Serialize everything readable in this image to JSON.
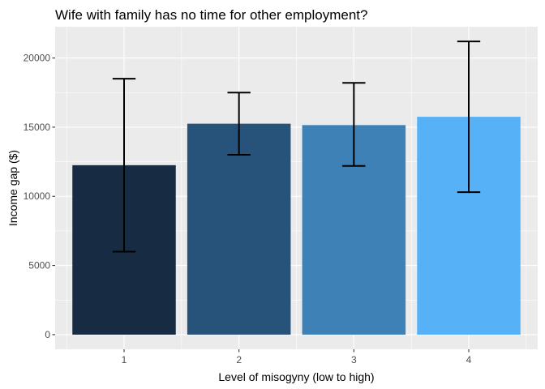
{
  "chart_data": {
    "type": "bar",
    "title": "Wife with family has no time for other employment?",
    "xlabel": "Level of misogyny (low to high)",
    "ylabel": "Income gap ($)",
    "categories": [
      "1",
      "2",
      "3",
      "4"
    ],
    "values": [
      12250,
      15250,
      15150,
      15750
    ],
    "error_bars": [
      {
        "low": 6000,
        "high": 18500
      },
      {
        "low": 13000,
        "high": 17500
      },
      {
        "low": 12200,
        "high": 18200
      },
      {
        "low": 10300,
        "high": 21200
      }
    ],
    "bar_colors": [
      "#172B43",
      "#27527A",
      "#3E81B7",
      "#56B1F7"
    ],
    "yticks": [
      0,
      5000,
      10000,
      15000,
      20000
    ],
    "ytick_labels": [
      "0",
      "5000",
      "10000",
      "15000",
      "20000"
    ],
    "ylim": [
      -1060,
      22260
    ],
    "panel_background": "#EBEBEB",
    "grid": true
  }
}
